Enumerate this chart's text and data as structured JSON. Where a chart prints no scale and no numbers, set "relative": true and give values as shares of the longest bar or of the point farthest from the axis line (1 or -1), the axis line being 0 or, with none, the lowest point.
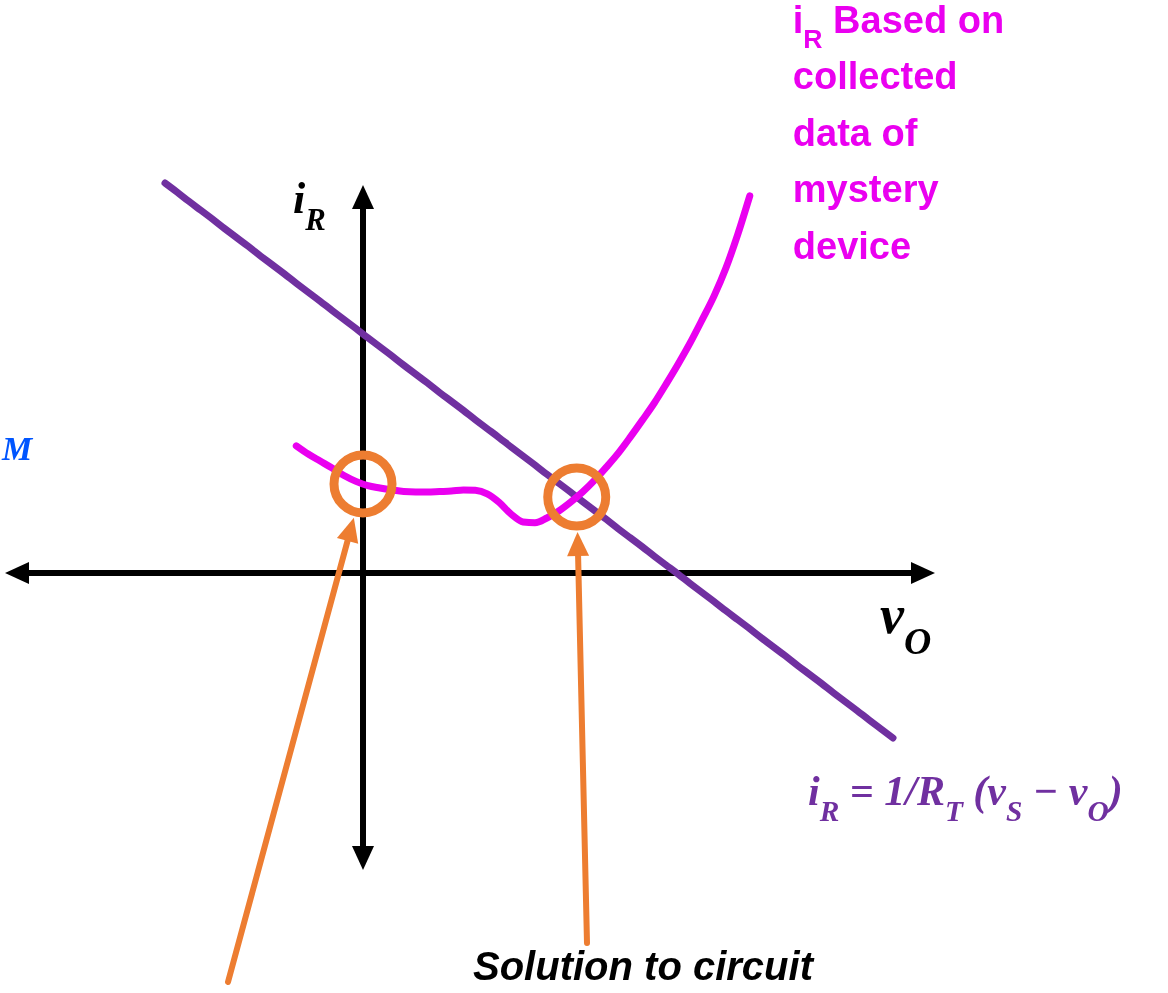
{
  "chart_data": {
    "type": "line",
    "relative": true,
    "xlabel": "v$_{O}$",
    "ylabel": "i$_{R}$",
    "categories": [
      null,
      null,
      null,
      null,
      null,
      null,
      null,
      null,
      null,
      null,
      null,
      null,
      null,
      null,
      null,
      null,
      null,
      null,
      null,
      null,
      null,
      null,
      null,
      null,
      null,
      null,
      null,
      null,
      null,
      null,
      null,
      null,
      null,
      null,
      null,
      null,
      null,
      null,
      null,
      null,
      null,
      null,
      null,
      null,
      null,
      null,
      null,
      null,
      null,
      null,
      null,
      null,
      null,
      null,
      null,
      null,
      null,
      null,
      null,
      null,
      null,
      null
    ],
    "series": [
      {
        "name": "i$_{R}$ = 1/R$_{T}$ (v$_{S}$ − v$_{O}$)",
        "color": "#7030a0",
        "values": [
          1.0,
          0.977,
          0.953,
          0.93,
          0.907,
          0.883,
          0.86,
          0.837,
          0.813,
          0.79,
          0.767,
          0.743,
          0.72,
          0.697,
          0.673,
          0.65,
          0.627,
          0.603,
          0.58,
          0.557,
          0.533,
          0.51,
          0.487,
          0.463,
          0.44,
          0.417,
          0.393,
          0.37,
          0.347,
          0.323,
          0.3,
          0.277,
          0.253,
          0.23,
          0.207,
          0.183,
          0.16,
          0.137,
          0.113,
          0.09,
          0.067,
          0.043,
          0.02,
          -0.003,
          -0.027,
          -0.05,
          -0.073,
          -0.097,
          -0.12,
          -0.143,
          -0.167,
          -0.19,
          -0.213,
          -0.237,
          -0.26,
          -0.283,
          -0.307,
          -0.33,
          -0.353,
          -0.377,
          -0.4,
          -0.423
        ]
      },
      {
        "name": "i$_{R}$ Based on collected data of mystery device",
        "color": "#ea00f0",
        "values": [
          null,
          null,
          null,
          null,
          null,
          null,
          null,
          null,
          null,
          null,
          null,
          0.326,
          0.305,
          0.287,
          0.269,
          0.25,
          0.235,
          0.224,
          0.218,
          0.213,
          0.209,
          0.208,
          0.208,
          0.209,
          0.21,
          0.213,
          0.212,
          0.203,
          0.181,
          0.151,
          0.131,
          0.129,
          0.141,
          0.159,
          0.182,
          0.208,
          0.238,
          0.272,
          0.308,
          0.349,
          0.392,
          0.436,
          0.485,
          0.536,
          0.59,
          0.649,
          0.71,
          0.782,
          0.869,
          0.967,
          null,
          null,
          null,
          null,
          null,
          null,
          null,
          null,
          null,
          null,
          null,
          null
        ]
      }
    ],
    "annotations": [
      "M",
      "Solution to circuit"
    ]
  }
}
